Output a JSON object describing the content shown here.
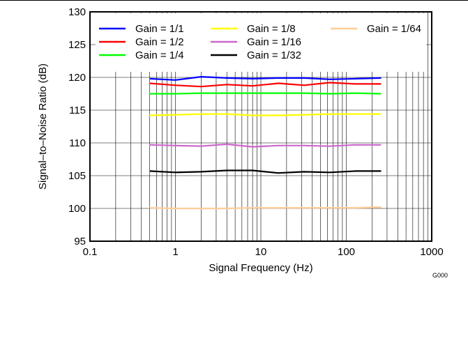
{
  "figure_id": "G000",
  "chart_data": {
    "type": "line",
    "xlabel": "Signal Frequency (Hz)",
    "ylabel": "Signal–to–Noise Ratio (dB)",
    "xscale": "log",
    "xlim": [
      0.1,
      1000
    ],
    "ylim": [
      95,
      130
    ],
    "xticks": [
      0.1,
      1,
      10,
      100,
      1000
    ],
    "xtick_labels": [
      "0.1",
      "1",
      "10",
      "100",
      "1000"
    ],
    "yticks": [
      95,
      100,
      105,
      110,
      115,
      120,
      125,
      130
    ],
    "ytick_labels": [
      "95",
      "100",
      "105",
      "110",
      "115",
      "120",
      "125",
      "130"
    ],
    "grid": true,
    "legend": "top",
    "x": [
      0.5,
      1,
      2,
      4,
      8,
      16,
      32,
      64,
      128,
      256
    ],
    "series": [
      {
        "name": "Gain = 1/1",
        "color": "#0000ff",
        "values": [
          119.8,
          119.6,
          120.1,
          119.9,
          119.8,
          119.9,
          119.9,
          119.7,
          119.8,
          119.9
        ]
      },
      {
        "name": "Gain = 1/2",
        "color": "#ff0000",
        "values": [
          119.1,
          118.8,
          118.6,
          118.9,
          118.7,
          119.1,
          118.8,
          119.2,
          119.0,
          119.0
        ]
      },
      {
        "name": "Gain = 1/4",
        "color": "#00ff00",
        "values": [
          117.5,
          117.5,
          117.6,
          117.6,
          117.6,
          117.6,
          117.6,
          117.5,
          117.6,
          117.5
        ]
      },
      {
        "name": "Gain = 1/8",
        "color": "#ffff00",
        "values": [
          114.2,
          114.3,
          114.4,
          114.4,
          114.2,
          114.2,
          114.3,
          114.4,
          114.4,
          114.4
        ]
      },
      {
        "name": "Gain = 1/16",
        "color": "#cc66cc",
        "values": [
          109.7,
          109.6,
          109.5,
          109.8,
          109.4,
          109.6,
          109.6,
          109.5,
          109.7,
          109.7
        ]
      },
      {
        "name": "Gain = 1/32",
        "color": "#000000",
        "values": [
          105.7,
          105.5,
          105.6,
          105.8,
          105.8,
          105.4,
          105.6,
          105.5,
          105.7,
          105.7
        ]
      },
      {
        "name": "Gain = 1/64",
        "color": "#ffcc99",
        "values": [
          100.1,
          100.0,
          100.0,
          100.0,
          100.1,
          100.1,
          100.1,
          100.1,
          100.1,
          100.2
        ]
      }
    ]
  }
}
